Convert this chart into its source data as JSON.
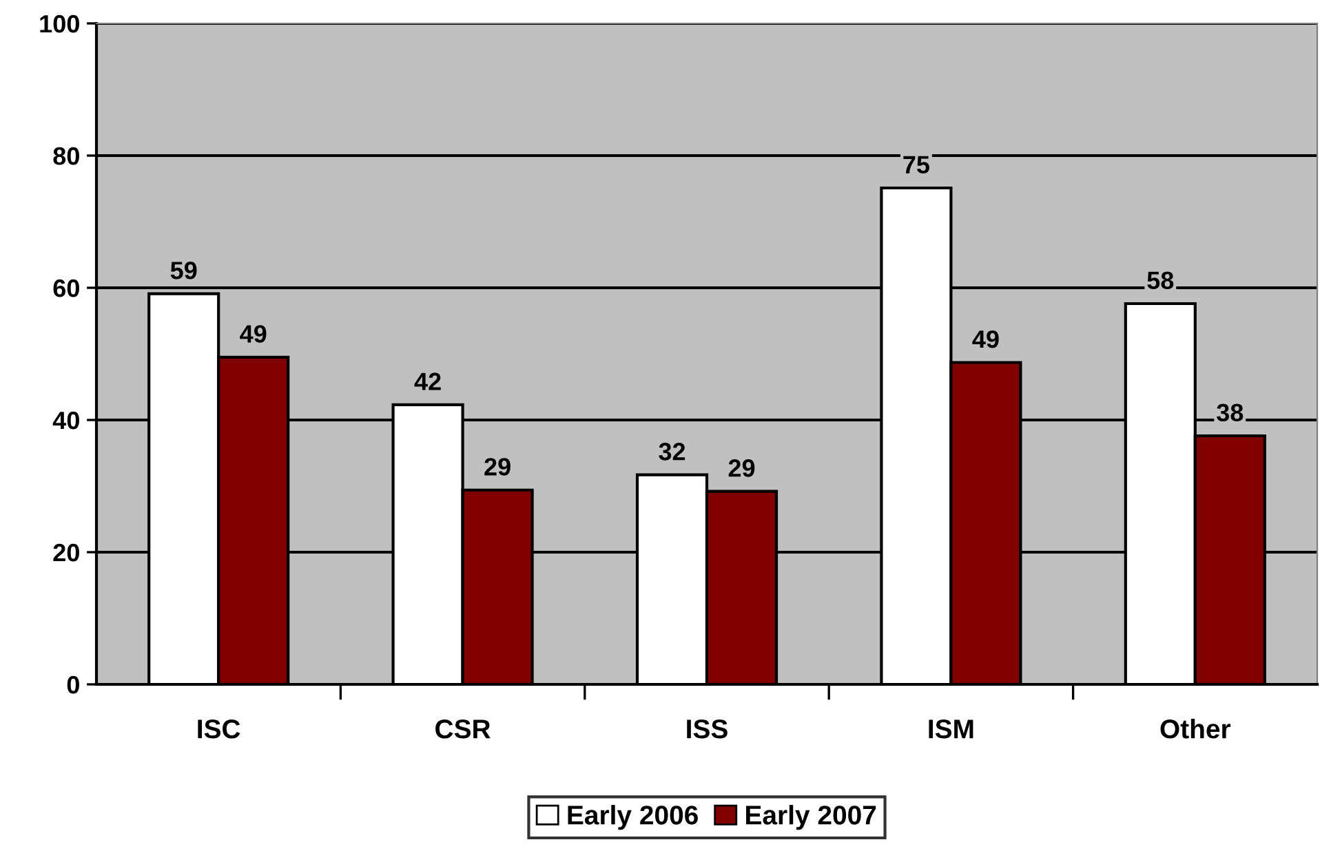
{
  "chart_data": {
    "type": "bar",
    "categories": [
      "ISC",
      "CSR",
      "ISS",
      "ISM",
      "Other"
    ],
    "series": [
      {
        "name": "Early 2006",
        "color": "#ffffff",
        "values": [
          59.1,
          42.3,
          31.7,
          75.1,
          57.6
        ],
        "value_labels": [
          "59",
          "42",
          "32",
          "75",
          "58"
        ]
      },
      {
        "name": "Early 2007",
        "color": "#800000",
        "values": [
          49.5,
          29.4,
          29.2,
          48.7,
          37.6
        ],
        "value_labels": [
          "49",
          "29",
          "29",
          "49",
          "38"
        ]
      }
    ],
    "ylim": [
      0,
      100
    ],
    "yticks": [
      0,
      20,
      40,
      60,
      80,
      100
    ],
    "grid": "y",
    "legend": "bottom"
  }
}
